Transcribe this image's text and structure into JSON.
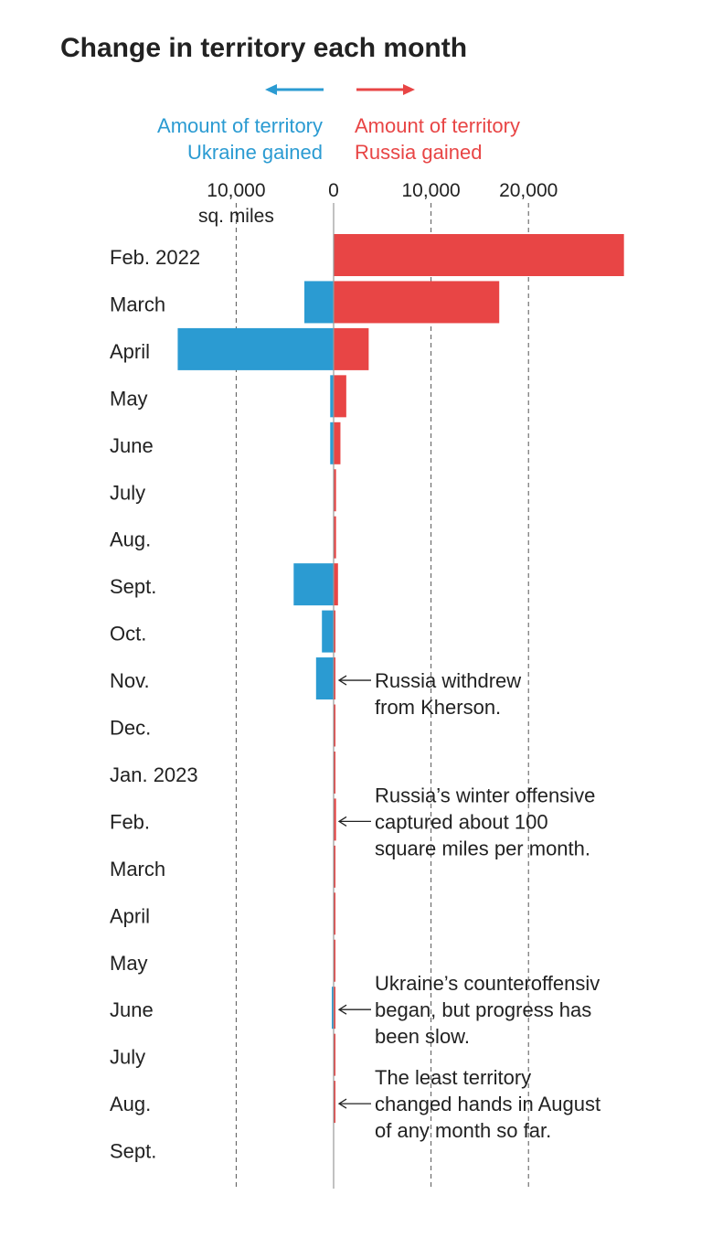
{
  "title": "Change in territory each month",
  "legend": {
    "ukraine_line1": "Amount of territory",
    "ukraine_line2": "Ukraine gained",
    "russia_line1": "Amount of territory",
    "russia_line2": "Russia gained"
  },
  "colors": {
    "ukraine": "#2b9bd2",
    "russia": "#e84545",
    "axis": "#999999",
    "text": "#222222"
  },
  "chart_data": {
    "type": "bar",
    "orientation": "horizontal-diverging",
    "title": "Change in territory each month",
    "unit_label": "sq. miles",
    "xlim": [
      -16000,
      30000
    ],
    "ticks": [
      {
        "value": -10000,
        "label": "10,000"
      },
      {
        "value": 0,
        "label": "0"
      },
      {
        "value": 10000,
        "label": "10,000"
      },
      {
        "value": 20000,
        "label": "20,000"
      }
    ],
    "categories": [
      "Feb. 2022",
      "March",
      "April",
      "May",
      "June",
      "July",
      "Aug.",
      "Sept.",
      "Oct.",
      "Nov.",
      "Dec.",
      "Jan. 2023",
      "Feb.",
      "March",
      "April",
      "May",
      "June",
      "July",
      "Aug.",
      "Sept."
    ],
    "series": [
      {
        "name": "Ukraine gained",
        "side": "left",
        "values": [
          0,
          3000,
          16000,
          350,
          350,
          0,
          0,
          4100,
          1200,
          1800,
          0,
          0,
          0,
          0,
          0,
          0,
          150,
          0,
          0,
          0
        ]
      },
      {
        "name": "Russia gained",
        "side": "right",
        "values": [
          29800,
          17000,
          3600,
          1300,
          700,
          250,
          250,
          450,
          80,
          80,
          80,
          100,
          250,
          100,
          100,
          40,
          40,
          30,
          30,
          0
        ]
      }
    ],
    "annotations": [
      {
        "category_index": 9,
        "lines": [
          "Russia withdrew",
          "from Kherson."
        ]
      },
      {
        "category_index": 12,
        "lines": [
          "Russia’s winter offensive",
          "captured about 100",
          "square miles per month."
        ]
      },
      {
        "category_index": 16,
        "lines": [
          "Ukraine’s counteroffensiv",
          "began, but progress has",
          "been slow."
        ]
      },
      {
        "category_index": 18,
        "lines": [
          "The least territory",
          "changed hands in August",
          "of any month so far."
        ]
      }
    ]
  }
}
